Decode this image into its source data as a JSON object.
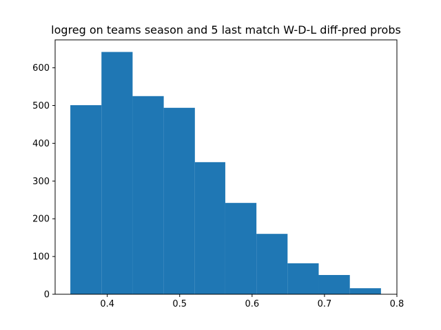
{
  "chart_data": {
    "type": "bar",
    "title": "logreg on teams season and 5 last match W-D-L diff-pred probs",
    "xlabel": "",
    "ylabel": "",
    "bins": [
      {
        "x0": 0.349,
        "x1": 0.392,
        "count": 501
      },
      {
        "x0": 0.392,
        "x1": 0.435,
        "count": 642
      },
      {
        "x0": 0.435,
        "x1": 0.478,
        "count": 525
      },
      {
        "x0": 0.478,
        "x1": 0.521,
        "count": 494
      },
      {
        "x0": 0.521,
        "x1": 0.563,
        "count": 350
      },
      {
        "x0": 0.563,
        "x1": 0.606,
        "count": 242
      },
      {
        "x0": 0.606,
        "x1": 0.649,
        "count": 160
      },
      {
        "x0": 0.649,
        "x1": 0.692,
        "count": 82
      },
      {
        "x0": 0.692,
        "x1": 0.735,
        "count": 51
      },
      {
        "x0": 0.735,
        "x1": 0.778,
        "count": 16
      }
    ],
    "xlim": [
      0.328,
      0.8
    ],
    "ylim": [
      0,
      674
    ],
    "xticks": [
      0.4,
      0.5,
      0.6,
      0.7,
      0.8
    ],
    "xtick_labels": [
      "0.4",
      "0.5",
      "0.6",
      "0.7",
      "0.8"
    ],
    "yticks": [
      0,
      100,
      200,
      300,
      400,
      500,
      600
    ],
    "ytick_labels": [
      "0",
      "100",
      "200",
      "300",
      "400",
      "500",
      "600"
    ],
    "bar_color": "#1f77b4",
    "grid": false,
    "legend": "none"
  }
}
